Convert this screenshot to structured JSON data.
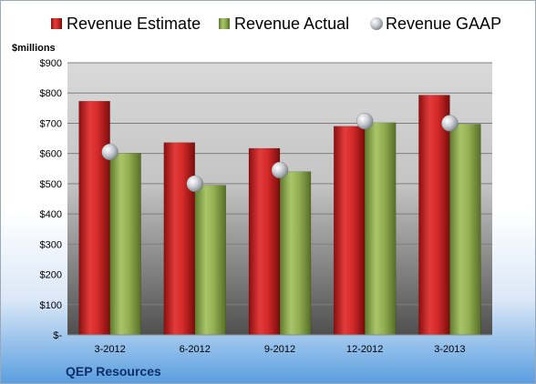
{
  "chart_data": {
    "type": "bar",
    "title": "",
    "xlabel": "",
    "ylabel": "$millions",
    "company": "QEP Resources",
    "categories": [
      "3-2012",
      "6-2012",
      "9-2012",
      "12-2012",
      "3-2013"
    ],
    "ylim": [
      0,
      900
    ],
    "y_ticks": [
      0,
      100,
      200,
      300,
      400,
      500,
      600,
      700,
      800,
      900
    ],
    "y_tick_labels": [
      "$-",
      "$100",
      "$200",
      "$300",
      "$400",
      "$500",
      "$600",
      "$700",
      "$800",
      "$900"
    ],
    "grid": true,
    "legend_position": "top",
    "series": [
      {
        "name": "Revenue Estimate",
        "kind": "bar",
        "color": "#d32b2b",
        "values": [
          773,
          636,
          617,
          690,
          793
        ]
      },
      {
        "name": "Revenue Actual",
        "kind": "bar",
        "color": "#8fae4c",
        "values": [
          601,
          495,
          540,
          702,
          697
        ]
      },
      {
        "name": "Revenue GAAP",
        "kind": "marker",
        "color": "#b9bec6",
        "values": [
          605,
          500,
          545,
          707,
          700
        ]
      }
    ]
  }
}
